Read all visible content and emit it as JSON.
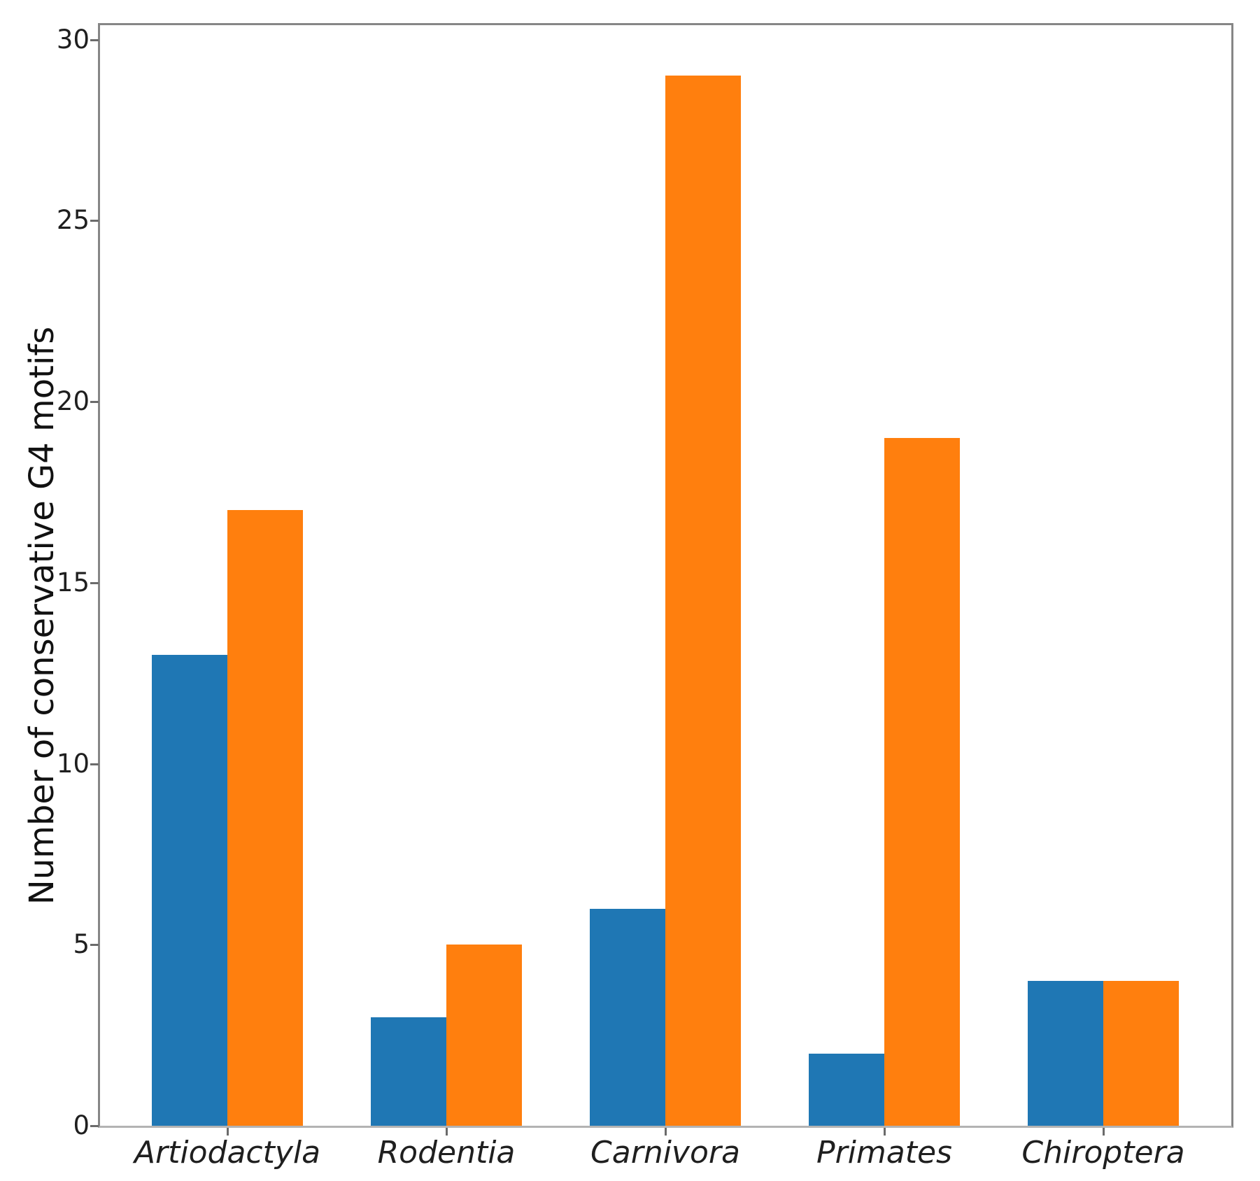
{
  "figure": {
    "background": "#ffffff",
    "spine_color": "#868686",
    "bottom_spine_color": "#b3b3b3",
    "tick_color": "#6b6b6b",
    "text_color": "#1f1f1f"
  },
  "chart_data": {
    "type": "bar",
    "title": "",
    "xlabel": "",
    "ylabel": "Number of conservative G4 motifs",
    "categories": [
      "Artiodactyla",
      "Rodentia",
      "Carnivora",
      "Primates",
      "Chiroptera"
    ],
    "series": [
      {
        "name": "series-1-blue",
        "color": "#1f77b4",
        "values": [
          13,
          3,
          6,
          2,
          4
        ]
      },
      {
        "name": "series-2-orange",
        "color": "#ff7f0e",
        "values": [
          17,
          5,
          29,
          19,
          4
        ]
      }
    ],
    "ylim": [
      0,
      30.4
    ],
    "yticks": [
      0,
      5,
      10,
      15,
      20,
      25,
      30
    ],
    "ytick_labels": [
      "0",
      "5",
      "10",
      "15",
      "20",
      "25",
      "30"
    ],
    "grid": false,
    "legend": null,
    "xtick_label_style": "italic"
  }
}
